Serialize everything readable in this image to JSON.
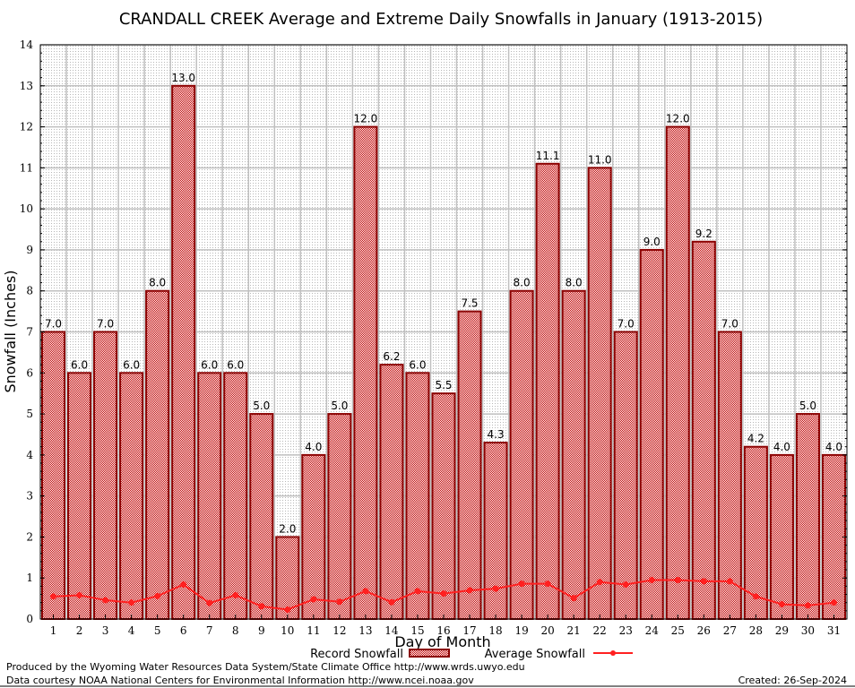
{
  "chart_data": {
    "type": "bar",
    "title": "CRANDALL CREEK Average and Extreme Daily Snowfalls in January (1913-2015)",
    "xlabel": "Day of Month",
    "ylabel": "Snowfall (Inches)",
    "ylim": [
      0,
      14
    ],
    "yticks": [
      0,
      1,
      2,
      3,
      4,
      5,
      6,
      7,
      8,
      9,
      10,
      11,
      12,
      13,
      14
    ],
    "grid": true,
    "legend_placement": "bottom",
    "categories": [
      "1",
      "2",
      "3",
      "4",
      "5",
      "6",
      "7",
      "8",
      "9",
      "10",
      "11",
      "12",
      "13",
      "14",
      "15",
      "16",
      "17",
      "18",
      "19",
      "20",
      "21",
      "22",
      "23",
      "24",
      "25",
      "26",
      "27",
      "28",
      "29",
      "30",
      "31"
    ],
    "series": [
      {
        "name": "Record Snowfall",
        "type": "bar",
        "color": "#cc0000",
        "values": [
          7.0,
          6.0,
          7.0,
          6.0,
          8.0,
          13.0,
          6.0,
          6.0,
          5.0,
          2.0,
          4.0,
          5.0,
          12.0,
          6.2,
          6.0,
          5.5,
          7.5,
          4.3,
          8.0,
          11.1,
          8.0,
          11.0,
          7.0,
          9.0,
          12.0,
          9.2,
          7.0,
          4.2,
          4.0,
          5.0,
          4.0
        ],
        "labels": [
          "7.0",
          "6.0",
          "7.0",
          "6.0",
          "8.0",
          "13.0",
          "6.0",
          "6.0",
          "5.0",
          "2.0",
          "4.0",
          "5.0",
          "12.0",
          "6.2",
          "6.0",
          "5.5",
          "7.5",
          "4.3",
          "8.0",
          "11.1",
          "8.0",
          "11.0",
          "7.0",
          "9.0",
          "12.0",
          "9.2",
          "7.0",
          "4.2",
          "4.0",
          "5.0",
          "4.0"
        ]
      },
      {
        "name": "Average Snowfall",
        "type": "line",
        "color": "#ff2020",
        "values": [
          0.55,
          0.58,
          0.46,
          0.4,
          0.56,
          0.84,
          0.39,
          0.58,
          0.31,
          0.23,
          0.48,
          0.42,
          0.68,
          0.41,
          0.68,
          0.62,
          0.7,
          0.74,
          0.86,
          0.86,
          0.51,
          0.9,
          0.84,
          0.95,
          0.95,
          0.92,
          0.92,
          0.55,
          0.36,
          0.33,
          0.4
        ]
      }
    ]
  },
  "footer": {
    "line1": "Produced by the Wyoming Water Resources Data System/State Climate Office http://www.wrds.uwyo.edu",
    "line2": "Data courtesy NOAA National Centers for Environmental Information http://www.ncei.noaa.gov",
    "created": "Created:  26-Sep-2024"
  }
}
